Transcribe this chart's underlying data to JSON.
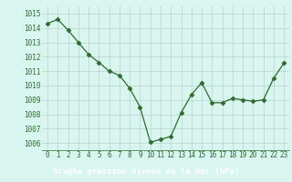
{
  "x": [
    0,
    1,
    2,
    3,
    4,
    5,
    6,
    7,
    8,
    9,
    10,
    11,
    12,
    13,
    14,
    15,
    16,
    17,
    18,
    19,
    20,
    21,
    22,
    23
  ],
  "y": [
    1014.3,
    1014.6,
    1013.85,
    1013.0,
    1012.15,
    1011.6,
    1011.0,
    1010.7,
    1009.8,
    1008.5,
    1006.05,
    1006.25,
    1006.45,
    1008.1,
    1009.35,
    1010.2,
    1008.8,
    1008.8,
    1009.1,
    1009.0,
    1008.9,
    1009.0,
    1010.5,
    1011.55
  ],
  "line_color": "#2d6b2d",
  "marker": "D",
  "marker_size": 2.5,
  "bg_color": "#d8f5f0",
  "grid_color": "#b8d4cc",
  "label_bg": "#2d6b2d",
  "label_text": "Graphe pression niveau de la mer (hPa)",
  "label_color": "#ffffff",
  "ylim": [
    1005.5,
    1015.5
  ],
  "xlim": [
    -0.5,
    23.5
  ],
  "yticks": [
    1006,
    1007,
    1008,
    1009,
    1010,
    1011,
    1012,
    1013,
    1014,
    1015
  ],
  "xticks": [
    0,
    1,
    2,
    3,
    4,
    5,
    6,
    7,
    8,
    9,
    10,
    11,
    12,
    13,
    14,
    15,
    16,
    17,
    18,
    19,
    20,
    21,
    22,
    23
  ],
  "tick_fontsize": 5.5,
  "label_fontsize": 6.5
}
